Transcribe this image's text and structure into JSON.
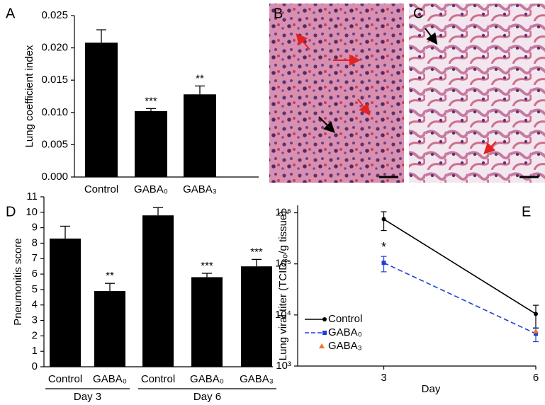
{
  "chart_data": [
    {
      "type": "bar",
      "panel": "A",
      "y_label": "Lung coefficient index",
      "categories": [
        "Control",
        "GABA₀",
        "GABA₃"
      ],
      "values": [
        0.0208,
        0.0102,
        0.0128
      ],
      "errors": [
        0.002,
        0.0004,
        0.0013
      ],
      "significance": [
        null,
        "***",
        "**"
      ],
      "color": "#000000",
      "ylim": [
        0,
        0.025
      ],
      "yticks": [
        {
          "value": 0,
          "label": "0.000"
        },
        {
          "value": 0.005,
          "label": "0.005"
        },
        {
          "value": 0.01,
          "label": "0.010"
        },
        {
          "value": 0.015,
          "label": "0.015"
        },
        {
          "value": 0.02,
          "label": "0.020"
        },
        {
          "value": 0.025,
          "label": "0.025"
        }
      ]
    },
    {
      "type": "bar",
      "panel": "D",
      "y_label": "Pneumonitis score",
      "categories": [
        "Control",
        "GABA₀",
        "Control",
        "GABA₀",
        "GABA₃"
      ],
      "groups": [
        "Day 3",
        "Day 6"
      ],
      "values": [
        8.3,
        4.9,
        9.8,
        5.8,
        6.5
      ],
      "errors": [
        0.8,
        0.5,
        0.5,
        0.25,
        0.45
      ],
      "significance": [
        null,
        "**",
        null,
        "***",
        "***"
      ],
      "color": "#000000",
      "ylim": [
        0,
        11
      ],
      "yticks": [
        0,
        1,
        2,
        3,
        4,
        5,
        6,
        7,
        8,
        9,
        10,
        11
      ]
    },
    {
      "type": "line",
      "panel": "E",
      "x_label": "Day",
      "y_label": "Lung viral titer (TCID₅₀/g tissue)",
      "x": [
        3,
        6
      ],
      "xlim": [
        1.3,
        6
      ],
      "xticks": [
        3,
        6
      ],
      "log_y": true,
      "ylim": [
        1000,
        1400000
      ],
      "yticks": [
        {
          "value": 1000,
          "label": "10³"
        },
        {
          "value": 10000,
          "label": "10⁴"
        },
        {
          "value": 100000,
          "label": "10⁵"
        },
        {
          "value": 1000000,
          "label": "10⁶"
        }
      ],
      "legend": "lower left",
      "series": [
        {
          "name": "Control",
          "color": "#000000",
          "line_style": "solid",
          "marker": "circle",
          "values": [
            750000,
            10500
          ],
          "errors": [
            300000,
            5000
          ],
          "significance": [
            null,
            null
          ]
        },
        {
          "name": "GABA₀",
          "color": "#1f3fd6",
          "line_style": "dashed",
          "marker": "square",
          "values": [
            105000,
            4300
          ],
          "errors": [
            35000,
            1300
          ],
          "significance": [
            "*",
            null
          ]
        },
        {
          "name": "GABA₃",
          "color": "#e8782a",
          "line_style": "none",
          "marker": "triangle",
          "values": [
            null,
            4800
          ],
          "errors": [
            null,
            null
          ],
          "significance": [
            null,
            null
          ]
        }
      ]
    }
  ],
  "images": [
    {
      "panel": "B"
    },
    {
      "panel": "C"
    }
  ]
}
